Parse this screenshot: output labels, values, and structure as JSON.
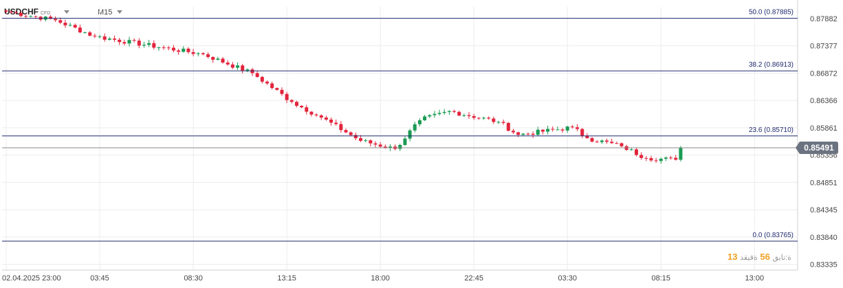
{
  "header": {
    "symbol": "USDCHF",
    "instrument_type": "CFD",
    "timeframe": "M15"
  },
  "countdown": {
    "hours": "13",
    "hours_label": "ة:تايق",
    "minutes": "56",
    "minutes_label": "ةقيقد"
  },
  "colors": {
    "up": "#1a9a52",
    "down": "#e2243c",
    "fib_line": "#1f2a6e",
    "price_line": "#888888",
    "price_label_bg": "#6b7280",
    "grid": "#ececec"
  },
  "chart_data": {
    "type": "candlestick",
    "ylim": [
      0.8328,
      0.8809
    ],
    "y_ticks": [
      "0.87882",
      "0.87377",
      "0.86872",
      "0.86366",
      "0.85861",
      "0.85356",
      "0.84851",
      "0.84345",
      "0.83840",
      "0.83335"
    ],
    "x_ticks": [
      "02.04.2025  23:00",
      "03:45",
      "08:30",
      "13:15",
      "18:00",
      "22:45",
      "03:30",
      "08:15",
      "13:00"
    ],
    "x_tick_index": [
      0,
      19,
      38,
      57,
      76,
      95,
      114,
      133,
      152
    ],
    "current_price": "0.85491",
    "fib_levels": [
      {
        "label": "50.0 (0.87885)",
        "price": 0.87885
      },
      {
        "label": "38.2 (0.86913)",
        "price": 0.86913
      },
      {
        "label": "23.6 (0.85710)",
        "price": 0.8571
      },
      {
        "label": "0.0 (0.83765)",
        "price": 0.83765
      }
    ],
    "key_closes": [
      {
        "bar": 0,
        "close": 0.8801
      },
      {
        "bar": 10,
        "close": 0.8785
      },
      {
        "bar": 18,
        "close": 0.8755
      },
      {
        "bar": 40,
        "close": 0.8722
      },
      {
        "bar": 50,
        "close": 0.8687
      },
      {
        "bar": 58,
        "close": 0.8634
      },
      {
        "bar": 64,
        "close": 0.8605
      },
      {
        "bar": 72,
        "close": 0.8562
      },
      {
        "bar": 79,
        "close": 0.8547
      },
      {
        "bar": 84,
        "close": 0.86
      },
      {
        "bar": 90,
        "close": 0.8617
      },
      {
        "bar": 100,
        "close": 0.8597
      },
      {
        "bar": 104,
        "close": 0.8573
      },
      {
        "bar": 115,
        "close": 0.8587
      },
      {
        "bar": 118,
        "close": 0.8567
      },
      {
        "bar": 125,
        "close": 0.8552
      },
      {
        "bar": 130,
        "close": 0.853
      },
      {
        "bar": 136,
        "close": 0.8527
      },
      {
        "bar": 137,
        "close": 0.8549
      }
    ]
  }
}
